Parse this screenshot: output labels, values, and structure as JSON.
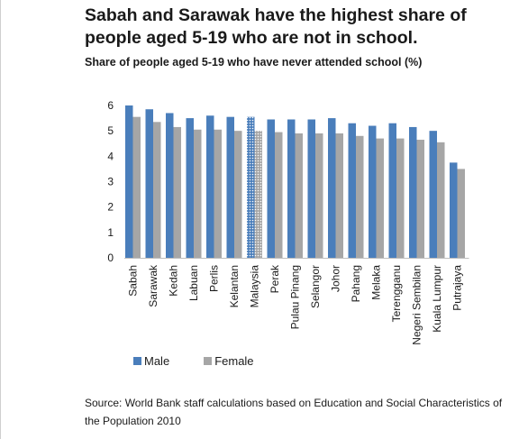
{
  "title": "Sabah and Sarawak have the highest share of people aged 5-19 who are not in school.",
  "subtitle": "Share of people aged 5-19 who have never attended school (%)",
  "source": "Source: World Bank staff calculations based on Education and Social Characteristics of the Population 2010",
  "colors": {
    "male": "#4a7ebb",
    "female": "#a6a6a6",
    "highlight_dots": "#ffffff"
  },
  "chart_data": {
    "type": "bar",
    "categories": [
      "Sabah",
      "Sarawak",
      "Kedah",
      "Labuan",
      "Perlis",
      "Kelantan",
      "Malaysia",
      "Perak",
      "Pulau Pinang",
      "Selangor",
      "Johor",
      "Pahang",
      "Melaka",
      "Terengganu",
      "Negeri Sembilan",
      "Kuala Lumpur",
      "Putrajaya"
    ],
    "highlight_category": "Malaysia",
    "series": [
      {
        "name": "Male",
        "values": [
          6.0,
          5.85,
          5.7,
          5.5,
          5.6,
          5.55,
          5.55,
          5.45,
          5.45,
          5.45,
          5.5,
          5.3,
          5.2,
          5.3,
          5.15,
          5.0,
          3.75
        ]
      },
      {
        "name": "Female",
        "values": [
          5.55,
          5.35,
          5.15,
          5.05,
          5.05,
          5.0,
          5.0,
          4.95,
          4.9,
          4.9,
          4.9,
          4.8,
          4.7,
          4.7,
          4.65,
          4.55,
          3.5
        ]
      }
    ],
    "yticks": [
      "0",
      "1",
      "2",
      "3",
      "4",
      "5",
      "6"
    ],
    "ylim": [
      0,
      6
    ],
    "legend_position": "bottom-left",
    "grid": false
  }
}
